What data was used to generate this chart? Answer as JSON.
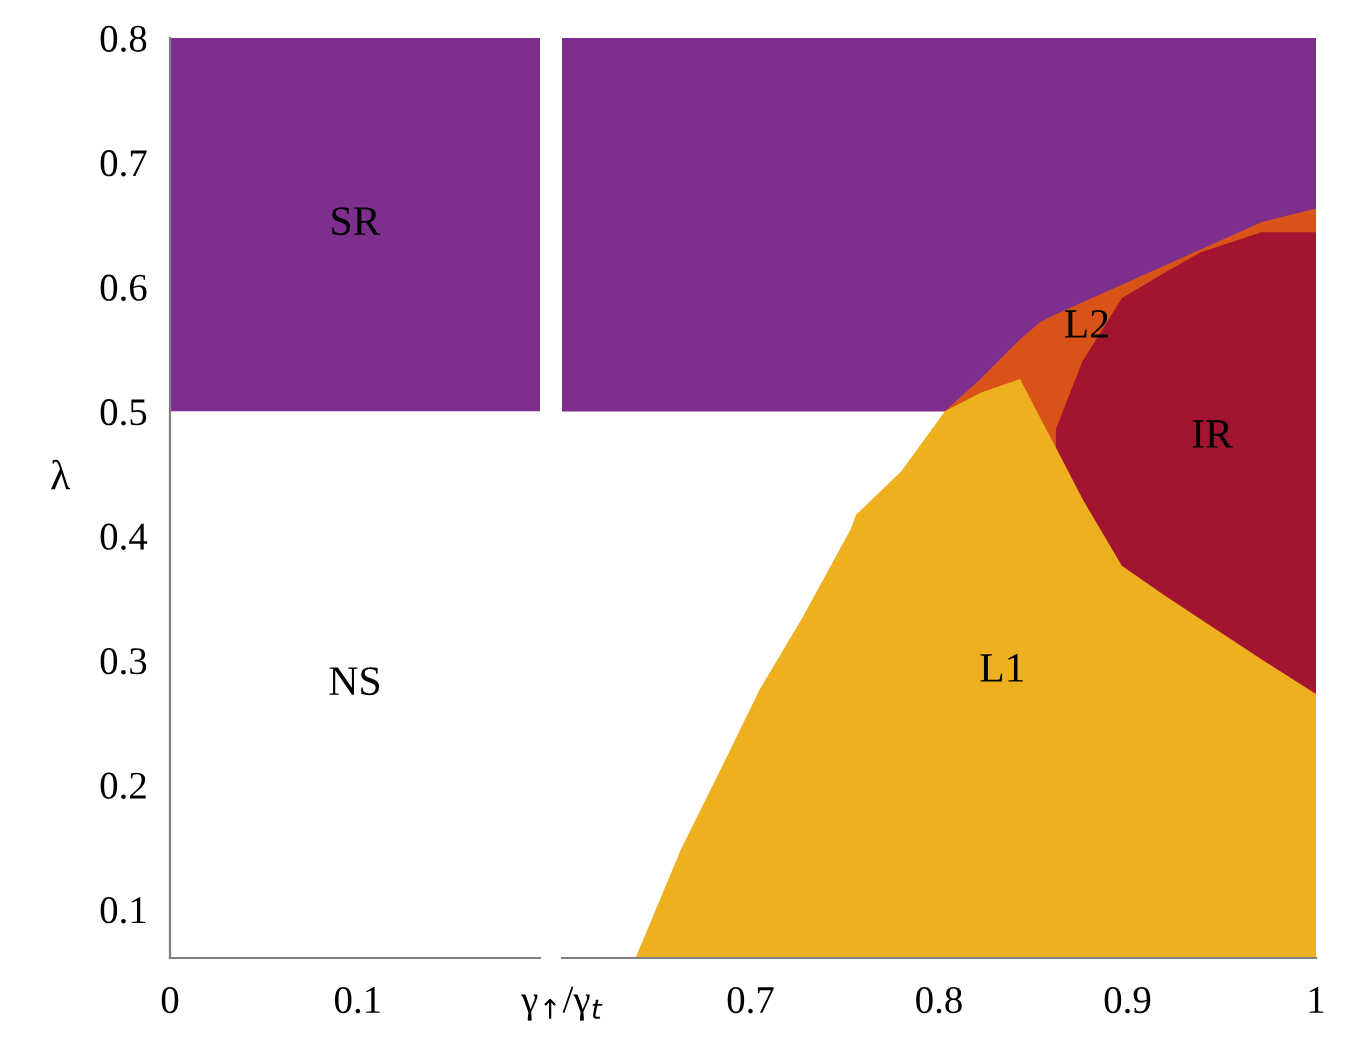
{
  "chart_data": [
    {
      "type": "area",
      "ylabel": "λ",
      "xlim": [
        0,
        0.197
      ],
      "ylim": [
        0.061,
        0.8
      ],
      "xticks": [
        0,
        0.1
      ],
      "yticks": [
        0.1,
        0.2,
        0.3,
        0.4,
        0.5,
        0.6,
        0.7,
        0.8
      ],
      "bands": [
        {
          "axis": "y",
          "from": 0.5,
          "to": 0.8,
          "label": "SR",
          "color": "#7e2f8e"
        },
        {
          "axis": "y",
          "from": 0.061,
          "to": 0.5,
          "label": "NS",
          "color": "#ffffff"
        }
      ]
    },
    {
      "type": "area",
      "xlim": [
        0.6,
        1
      ],
      "ylim": [
        0.061,
        0.8
      ],
      "xticks": [
        {
          "value": 0.6,
          "label": "γ$_{↑}$/γ$_{t}$"
        },
        0.7,
        0.8,
        0.9,
        1
      ],
      "yticks": [
        0.1,
        0.2,
        0.3,
        0.4,
        0.5,
        0.6,
        0.7,
        0.8
      ],
      "tick_labels": "x",
      "bands": [
        {
          "axis": "y",
          "from": 0.5,
          "to": 0.8,
          "color": "#7e2f8e"
        }
      ],
      "series": [
        {
          "name": "L2",
          "color": "#d95319",
          "x": [
            0.803,
            0.822,
            0.843,
            0.854,
            0.862,
            0.971,
            1.0
          ],
          "values": [
            0.5,
            0.526,
            0.558,
            0.572,
            0.578,
            0.652,
            0.663
          ]
        },
        {
          "name": "IR",
          "color": "#a2142f",
          "x": [
            0.862,
            0.876,
            0.897,
            0.918,
            0.939,
            0.971,
            1.0
          ],
          "values": [
            0.486,
            0.54,
            0.591,
            0.61,
            0.628,
            0.644,
            0.644
          ]
        },
        {
          "name": "L1",
          "color": "#edb120",
          "x": [
            0.639,
            0.663,
            0.684,
            0.705,
            0.727,
            0.753,
            0.756,
            0.78,
            0.803,
            0.822,
            0.843,
            0.854,
            0.862,
            0.876,
            0.897,
            0.918,
            0.939,
            0.971,
            1.0
          ],
          "values": [
            0.061,
            0.148,
            0.212,
            0.277,
            0.333,
            0.405,
            0.417,
            0.452,
            0.5,
            0.515,
            0.526,
            0.494,
            0.471,
            0.43,
            0.376,
            0.354,
            0.333,
            0.301,
            0.273
          ]
        }
      ]
    }
  ]
}
